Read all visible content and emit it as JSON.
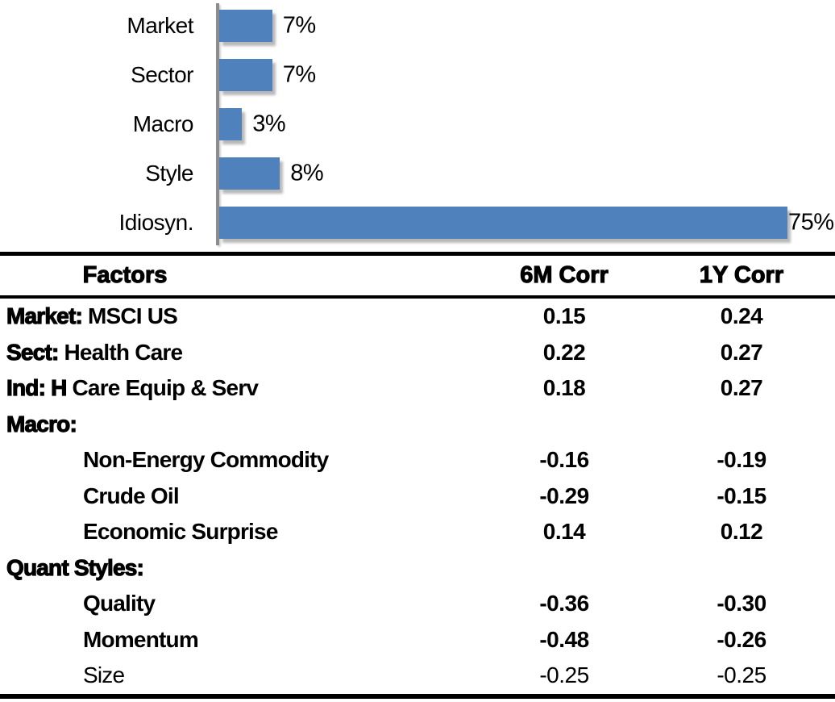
{
  "chart_data": [
    {
      "type": "bar",
      "orientation": "horizontal",
      "title": "",
      "xlabel": "",
      "ylabel": "",
      "categories": [
        "Market",
        "Sector",
        "Macro",
        "Style",
        "Idiosyn."
      ],
      "values": [
        7,
        7,
        3,
        8,
        75
      ],
      "data_labels": [
        "7%",
        "7%",
        "3%",
        "8%",
        "75%"
      ],
      "xlim": [
        0,
        80
      ],
      "grid": false,
      "legend": false,
      "bar_color": "#4F81BD",
      "axis_color": "#8C8C8C"
    },
    {
      "type": "table",
      "headers": [
        "Factors",
        "6M Corr",
        "1Y Corr"
      ],
      "rows": [
        {
          "prefix": "Market:",
          "name": " MSCI US",
          "indent": false,
          "weight": "bold",
          "corr6": "0.15",
          "corr1": "0.24"
        },
        {
          "prefix": "Sect:",
          "name": " Health Care",
          "indent": false,
          "weight": "bold",
          "corr6": "0.22",
          "corr1": "0.27"
        },
        {
          "prefix": "Ind: H",
          "name": " Care Equip & Serv",
          "indent": false,
          "weight": "bold",
          "corr6": "0.18",
          "corr1": "0.27"
        },
        {
          "prefix": "Macro:",
          "name": "",
          "indent": false,
          "weight": "bold",
          "corr6": "",
          "corr1": ""
        },
        {
          "prefix": "",
          "name": "Non-Energy Commodity",
          "indent": true,
          "weight": "bold",
          "corr6": "-0.16",
          "corr1": "-0.19"
        },
        {
          "prefix": "",
          "name": "Crude Oil",
          "indent": true,
          "weight": "bold",
          "corr6": "-0.29",
          "corr1": "-0.15"
        },
        {
          "prefix": "",
          "name": "Economic Surprise",
          "indent": true,
          "weight": "bold",
          "corr6": "0.14",
          "corr1": "0.12"
        },
        {
          "prefix": "Quant Styles:",
          "name": "",
          "indent": false,
          "weight": "bold",
          "corr6": "",
          "corr1": ""
        },
        {
          "prefix": "",
          "name": "Quality",
          "indent": true,
          "weight": "bold",
          "corr6": "-0.36",
          "corr1": "-0.30"
        },
        {
          "prefix": "",
          "name": "Momentum",
          "indent": true,
          "weight": "bold",
          "corr6": "-0.48",
          "corr1": "-0.26"
        },
        {
          "prefix": "",
          "name": "Size",
          "indent": true,
          "weight": "normal",
          "corr6": "-0.25",
          "corr1": "-0.25"
        }
      ]
    }
  ]
}
